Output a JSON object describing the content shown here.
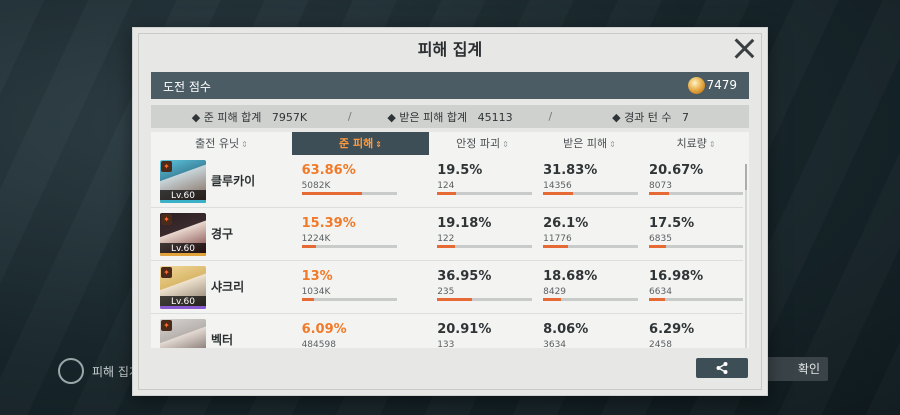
{
  "background": {
    "left_button_label": "피해 집계",
    "right_button_label": "확인"
  },
  "modal": {
    "title": "피해 집계",
    "score_label": "도전 점수",
    "score_value": "7479",
    "summary": {
      "dealt_label": "◆ 준 피해 합계",
      "dealt_value": "7957K",
      "received_label": "◆ 받은 피해 합계",
      "received_value": "45113",
      "turns_label": "◆ 경과 턴 수",
      "turns_value": "7",
      "separator": "/"
    },
    "columns": [
      "출전 유닛",
      "준 피해",
      "안정 파괴",
      "받은 피해",
      "치료량"
    ],
    "active_column_index": 1,
    "rows": [
      {
        "name": "클루카이",
        "level": "Lv.60",
        "rarity_color": "#3ab0c9",
        "dealt": {
          "pct": "63.86%",
          "raw": "5082K",
          "ratio": 0.6386
        },
        "break": {
          "pct": "19.5%",
          "raw": "124",
          "ratio": 0.195
        },
        "received": {
          "pct": "31.83%",
          "raw": "14356",
          "ratio": 0.3183
        },
        "healing": {
          "pct": "20.67%",
          "raw": "8073",
          "ratio": 0.2067
        }
      },
      {
        "name": "경구",
        "level": "Lv.60",
        "rarity_color": "#e2a23a",
        "dealt": {
          "pct": "15.39%",
          "raw": "1224K",
          "ratio": 0.1539
        },
        "break": {
          "pct": "19.18%",
          "raw": "122",
          "ratio": 0.1918
        },
        "received": {
          "pct": "26.1%",
          "raw": "11776",
          "ratio": 0.261
        },
        "healing": {
          "pct": "17.5%",
          "raw": "6835",
          "ratio": 0.175
        }
      },
      {
        "name": "샤크리",
        "level": "Lv.60",
        "rarity_color": "#8a5ad1",
        "dealt": {
          "pct": "13%",
          "raw": "1034K",
          "ratio": 0.13
        },
        "break": {
          "pct": "36.95%",
          "raw": "235",
          "ratio": 0.3695
        },
        "received": {
          "pct": "18.68%",
          "raw": "8429",
          "ratio": 0.1868
        },
        "healing": {
          "pct": "16.98%",
          "raw": "6634",
          "ratio": 0.1698
        }
      },
      {
        "name": "벡터",
        "level": "",
        "rarity_color": "#e2a23a",
        "dealt": {
          "pct": "6.09%",
          "raw": "484598",
          "ratio": 0.0609
        },
        "break": {
          "pct": "20.91%",
          "raw": "133",
          "ratio": 0.2091
        },
        "received": {
          "pct": "8.06%",
          "raw": "3634",
          "ratio": 0.0806
        },
        "healing": {
          "pct": "6.29%",
          "raw": "2458",
          "ratio": 0.0629
        }
      }
    ]
  },
  "icons": {
    "close": "close-icon",
    "share": "share-icon",
    "coin": "coin-icon",
    "sort": "sort-icon"
  },
  "colors": {
    "accent": "#f07a2a",
    "header_bar": "#4b5c65",
    "active_header": "#3d4e57",
    "bar_fill": "#e66a36"
  }
}
